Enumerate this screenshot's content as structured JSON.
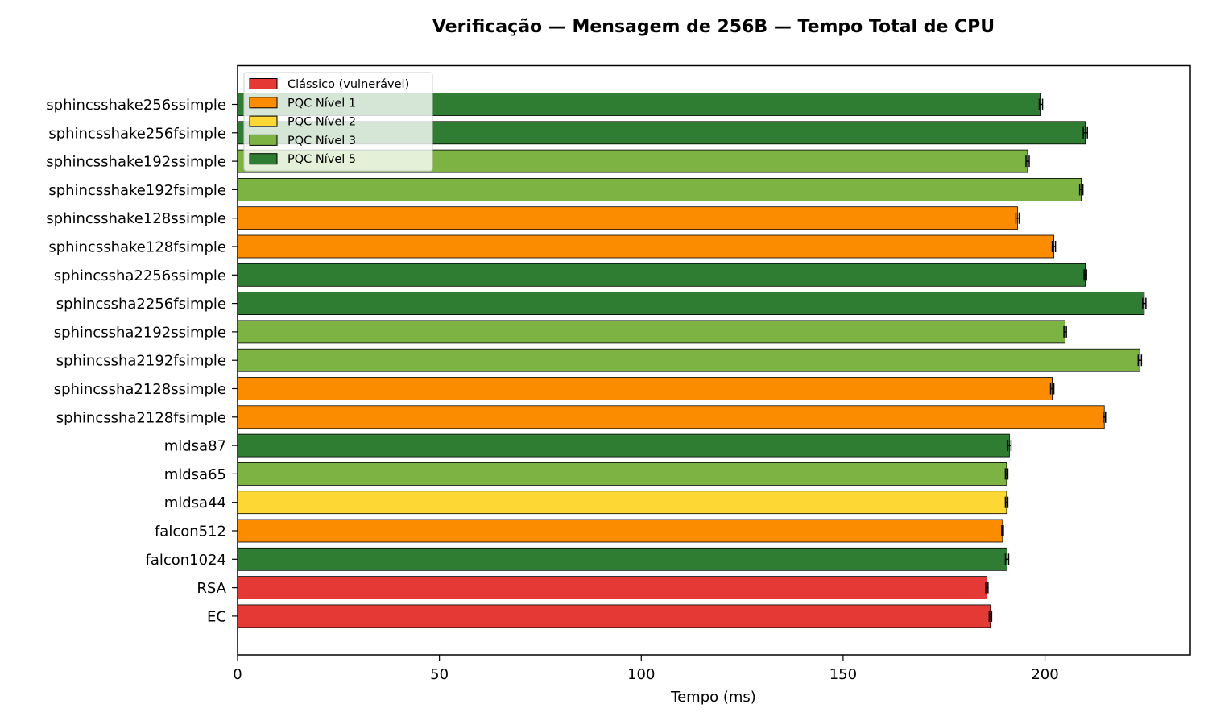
{
  "chart_data": {
    "type": "bar",
    "orientation": "horizontal",
    "title": "Verificação — Mensagem de 256B — Tempo Total de CPU",
    "xlabel": "Tempo (ms)",
    "ylabel": "",
    "xlim": [
      0,
      236
    ],
    "xticks": [
      0,
      50,
      100,
      150,
      200
    ],
    "xtick_labels": [
      "0",
      "50",
      "100",
      "150",
      "200"
    ],
    "grid": false,
    "legend_position": "top-left",
    "legend": [
      {
        "label": "Clássico (vulnerável)",
        "color": "#e53935"
      },
      {
        "label": "PQC Nível 1",
        "color": "#fb8c00"
      },
      {
        "label": "PQC Nível 2",
        "color": "#fdd835"
      },
      {
        "label": "PQC Nível 3",
        "color": "#7cb342"
      },
      {
        "label": "PQC Nível 5",
        "color": "#2e7d32"
      }
    ],
    "bars": [
      {
        "category": "sphincsshake256ssimple",
        "value": 199.0,
        "error": 0.4,
        "group": 4
      },
      {
        "category": "sphincsshake256fsimple",
        "value": 210.0,
        "error": 0.5,
        "group": 4
      },
      {
        "category": "sphincsshake192ssimple",
        "value": 195.7,
        "error": 0.4,
        "group": 3
      },
      {
        "category": "sphincsshake192fsimple",
        "value": 209.0,
        "error": 0.4,
        "group": 3
      },
      {
        "category": "sphincsshake128ssimple",
        "value": 193.2,
        "error": 0.4,
        "group": 1
      },
      {
        "category": "sphincsshake128fsimple",
        "value": 202.2,
        "error": 0.4,
        "group": 1
      },
      {
        "category": "sphincssha2256ssimple",
        "value": 210.0,
        "error": 0.3,
        "group": 4
      },
      {
        "category": "sphincssha2256fsimple",
        "value": 224.6,
        "error": 0.4,
        "group": 4
      },
      {
        "category": "sphincssha2192ssimple",
        "value": 205.0,
        "error": 0.3,
        "group": 3
      },
      {
        "category": "sphincssha2192fsimple",
        "value": 223.5,
        "error": 0.4,
        "group": 3
      },
      {
        "category": "sphincssha2128ssimple",
        "value": 201.8,
        "error": 0.4,
        "group": 1
      },
      {
        "category": "sphincssha2128fsimple",
        "value": 214.7,
        "error": 0.3,
        "group": 1
      },
      {
        "category": "mldsa87",
        "value": 191.2,
        "error": 0.4,
        "group": 4
      },
      {
        "category": "mldsa65",
        "value": 190.5,
        "error": 0.3,
        "group": 3
      },
      {
        "category": "mldsa44",
        "value": 190.5,
        "error": 0.3,
        "group": 2
      },
      {
        "category": "falcon512",
        "value": 189.5,
        "error": 0.2,
        "group": 1
      },
      {
        "category": "falcon1024",
        "value": 190.6,
        "error": 0.4,
        "group": 4
      },
      {
        "category": "RSA",
        "value": 185.6,
        "error": 0.3,
        "group": 0
      },
      {
        "category": "EC",
        "value": 186.5,
        "error": 0.3,
        "group": 0
      }
    ]
  }
}
